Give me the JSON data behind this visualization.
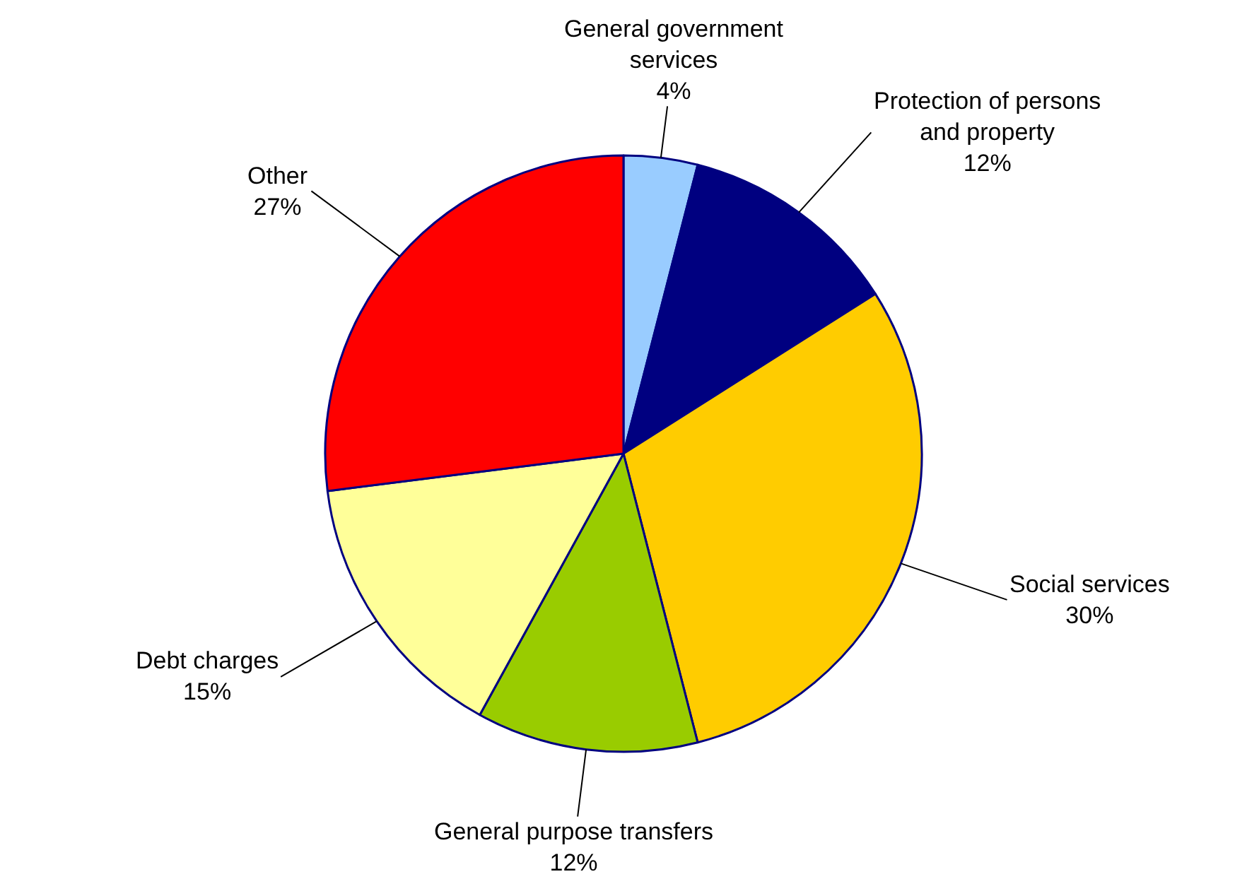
{
  "chart_data": {
    "type": "pie",
    "categories": [
      "General government\nservices",
      "Protection of persons\nand property",
      "Social services",
      "General purpose transfers",
      "Debt charges",
      "Other"
    ],
    "values": [
      4,
      12,
      30,
      12,
      15,
      27
    ],
    "colors": [
      "#99ccff",
      "#000080",
      "#ffcc00",
      "#99cc00",
      "#ffff99",
      "#ff0000"
    ],
    "value_labels": [
      "4%",
      "12%",
      "30%",
      "12%",
      "15%",
      "27%"
    ],
    "legend": false
  }
}
